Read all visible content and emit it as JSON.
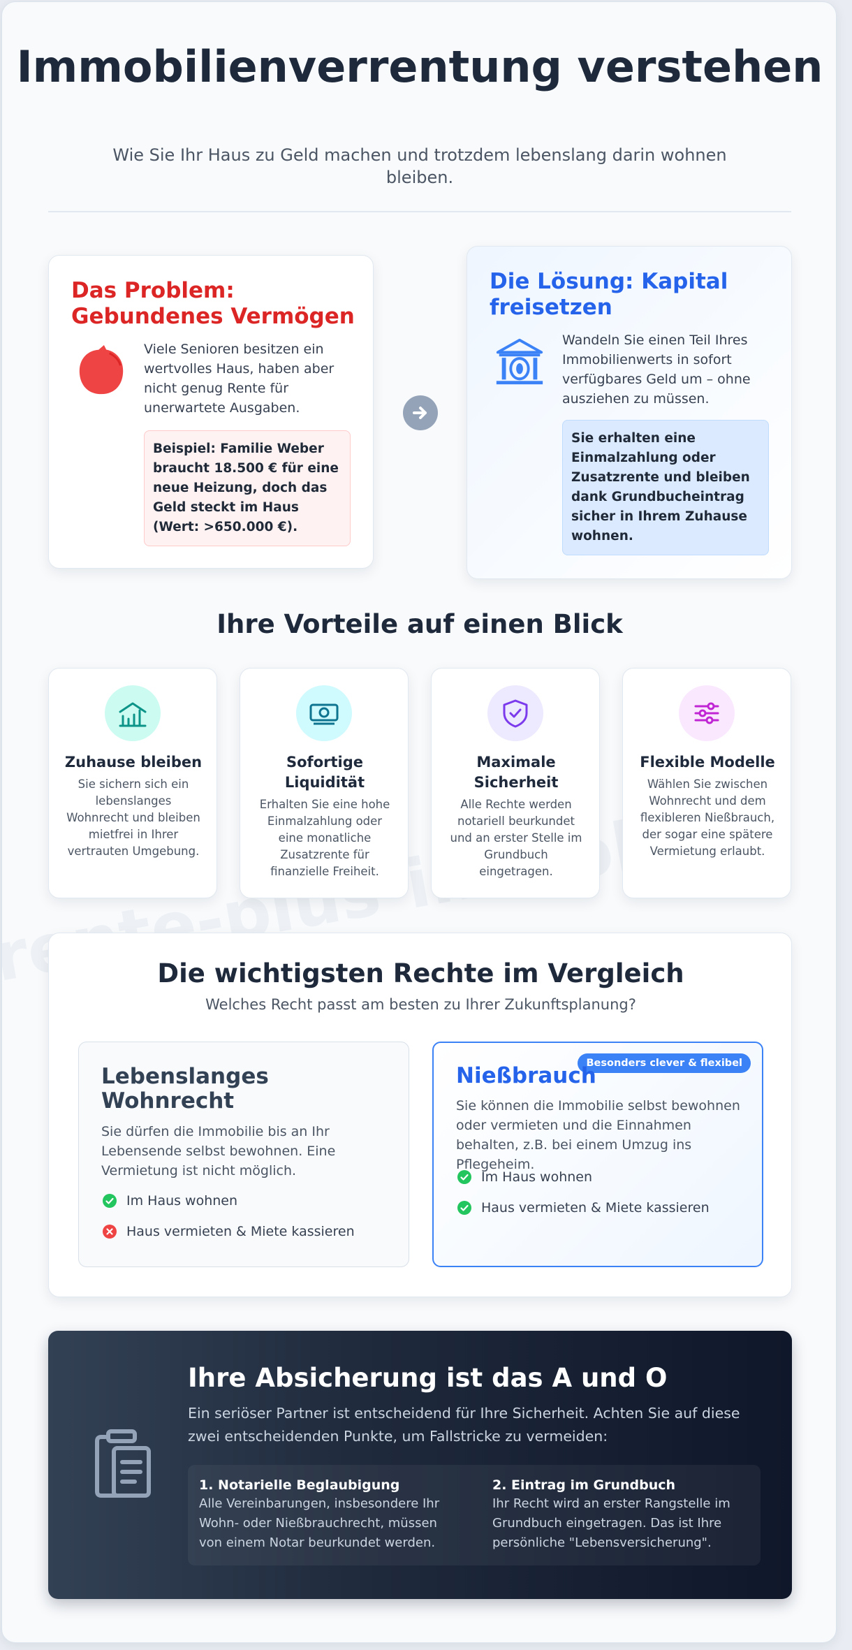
{
  "header": {
    "title": "Immobilienverrentung verstehen",
    "subtitle": "Wie Sie Ihr Haus zu Geld machen und trotzdem lebenslang darin wohnen bleiben."
  },
  "watermark": "rente-plus-immobilie",
  "problem": {
    "title": "Das Problem: Gebundenes Vermögen",
    "text": "Viele Senioren besitzen ein wertvolles Haus, haben aber nicht genug Rente für unerwartete Ausgaben.",
    "example": "Beispiel: Familie Weber braucht 18.500 € für eine neue Heizung, doch das Geld steckt im Haus (Wert: >650.000 €).",
    "icon": "piggy-bank-icon",
    "color": "#dc2626"
  },
  "solution": {
    "title": "Die Lösung: Kapital freisetzen",
    "text": "Wandeln Sie einen Teil Ihres Immobilienwerts in sofort verfügbares Geld um – ohne ausziehen zu müssen.",
    "highlight": "Sie erhalten eine Einmalzahlung oder Zusatzrente und bleiben dank Grundbucheintrag sicher in Ihrem Zuhause wohnen.",
    "icon": "bank-icon",
    "color": "#2563eb"
  },
  "advantages": {
    "title": "Ihre Vorteile auf einen Blick",
    "items": [
      {
        "title": "Zuhause bleiben",
        "text": "Sie sichern sich ein lebenslanges Wohnrecht und bleiben mietfrei in Ihrer vertrauten Umgebung.",
        "icon": "house-chart-icon",
        "color": "#0d9488",
        "bg": "#ccfbf1"
      },
      {
        "title": "Sofortige Liquidität",
        "text": "Erhalten Sie eine hohe Einmalzahlung oder eine monatliche Zusatzrente für finanzielle Freiheit.",
        "icon": "money-bill-icon",
        "color": "#0e7490",
        "bg": "#cffafe"
      },
      {
        "title": "Maximale Sicherheit",
        "text": "Alle Rechte werden notariell beurkundet und an erster Stelle im Grundbuch eingetragen.",
        "icon": "shield-check-icon",
        "color": "#7c3aed",
        "bg": "#ede9fe"
      },
      {
        "title": "Flexible Modelle",
        "text": "Wählen Sie zwischen Wohnrecht und dem flexibleren Nießbrauch, der sogar eine spätere Vermietung erlaubt.",
        "icon": "sliders-icon",
        "color": "#c026d3",
        "bg": "#fae8ff"
      }
    ]
  },
  "comparison": {
    "title": "Die wichtigsten Rechte im Vergleich",
    "subtitle": "Welches Recht passt am besten zu Ihrer Zukunftsplanung?",
    "options": [
      {
        "title": "Lebenslanges Wohnrecht",
        "text": "Sie dürfen die Immobilie bis an Ihr Lebensende selbst bewohnen. Eine Vermietung ist nicht möglich.",
        "features": [
          {
            "label": "Im Haus wohnen",
            "ok": true
          },
          {
            "label": "Haus vermieten & Miete kassieren",
            "ok": false
          }
        ]
      },
      {
        "title": "Nießbrauch",
        "badge": "Besonders clever & flexibel",
        "text": "Sie können die Immobilie selbst bewohnen oder vermieten und die Einnahmen behalten, z.B. bei einem Umzug ins Pflegeheim.",
        "features": [
          {
            "label": "Im Haus wohnen",
            "ok": true
          },
          {
            "label": "Haus vermieten & Miete kassieren",
            "ok": true
          }
        ]
      }
    ]
  },
  "security": {
    "title": "Ihre Absicherung ist das A und O",
    "text": "Ein seriöser Partner ist entscheidend für Ihre Sicherheit. Achten Sie auf diese zwei entscheidenden Punkte, um Fallstricke zu vermeiden:",
    "icon": "clipboard-icon",
    "points": [
      {
        "title": "1. Notarielle Beglaubigung",
        "text": "Alle Vereinbarungen, insbesondere Ihr Wohn- oder Nießbrauchrecht, müssen von einem Notar beurkundet werden."
      },
      {
        "title": "2. Eintrag im Grundbuch",
        "text": "Ihr Recht wird an erster Rangstelle im Grundbuch eingetragen. Das ist Ihre persönliche \"Lebensversicherung\"."
      }
    ]
  },
  "colors": {
    "check": "#22c55e",
    "cross": "#ef4444",
    "accent": "#3b82f6"
  }
}
